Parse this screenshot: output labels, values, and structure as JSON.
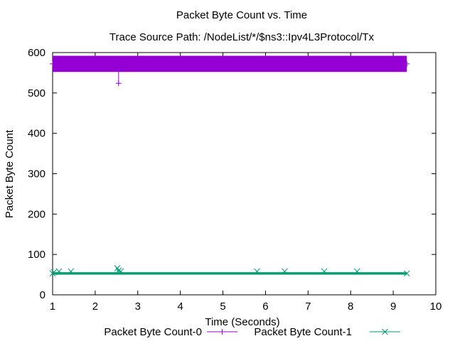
{
  "chart_data": {
    "type": "line",
    "title": "Packet Byte Count vs. Time",
    "subtitle": "Trace Source Path: /NodeList/*/$ns3::Ipv4L3Protocol/Tx",
    "xlabel": "Time (Seconds)",
    "ylabel": "Packet Byte Count",
    "xlim": [
      1,
      10
    ],
    "ylim": [
      0,
      600
    ],
    "xticks": [
      "1",
      "2",
      "3",
      "4",
      "5",
      "6",
      "7",
      "8",
      "9",
      "10"
    ],
    "yticks": [
      "0",
      "100",
      "200",
      "300",
      "400",
      "500",
      "600"
    ],
    "grid": false,
    "legend_position": "bottom",
    "series": [
      {
        "name": "Packet Byte Count-0",
        "color": "#9400d3",
        "marker": "plus",
        "x_range": [
          1.0,
          9.32
        ],
        "band": [
          552,
          592
        ],
        "outliers": [
          {
            "x": 2.55,
            "y": 524
          }
        ]
      },
      {
        "name": "Packet Byte Count-1",
        "color": "#009e73",
        "marker": "cross",
        "x_range": [
          1.0,
          9.32
        ],
        "band": [
          50,
          56
        ],
        "outliers": [
          {
            "x": 1.03,
            "y": 56
          },
          {
            "x": 1.15,
            "y": 58
          },
          {
            "x": 1.43,
            "y": 58
          },
          {
            "x": 2.52,
            "y": 66
          },
          {
            "x": 2.55,
            "y": 60
          },
          {
            "x": 2.6,
            "y": 58
          },
          {
            "x": 5.8,
            "y": 58
          },
          {
            "x": 6.45,
            "y": 58
          },
          {
            "x": 7.38,
            "y": 58
          },
          {
            "x": 8.15,
            "y": 58
          }
        ]
      }
    ]
  }
}
